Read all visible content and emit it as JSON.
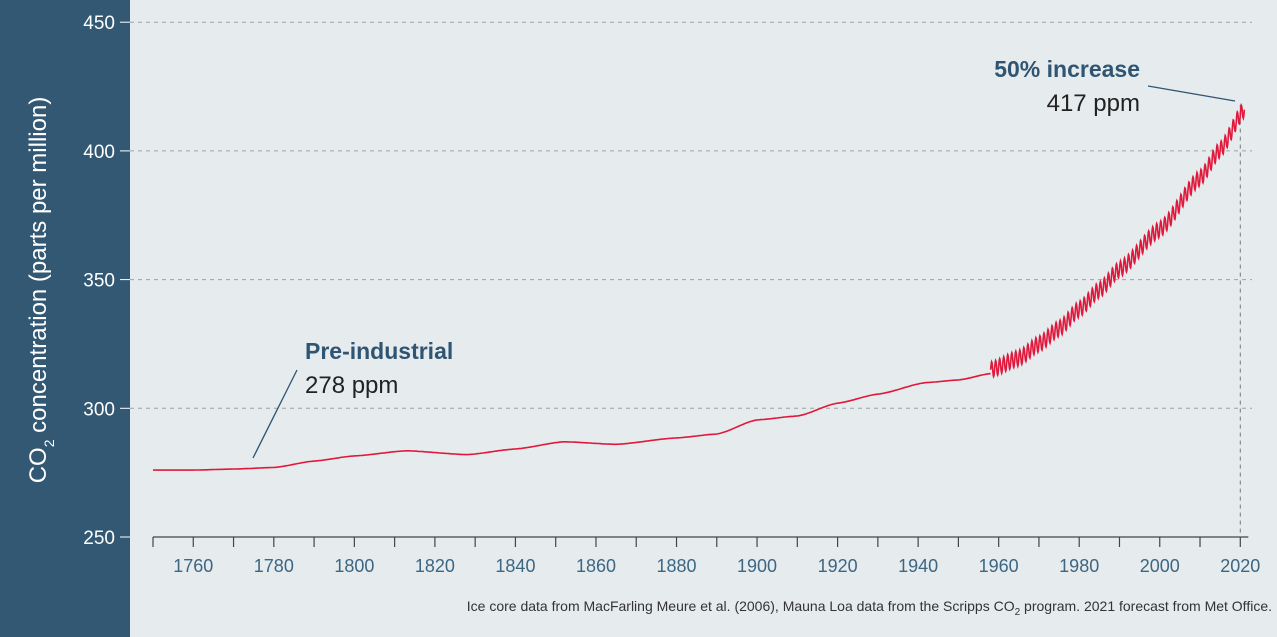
{
  "chart_data": {
    "type": "line",
    "ylabel": {
      "main": "CO",
      "sub": "2",
      "rest": " concentration (parts per million)"
    },
    "ylim": [
      250,
      450
    ],
    "yticks": [
      250,
      300,
      350,
      400,
      450
    ],
    "xlim": [
      1750,
      2022
    ],
    "xticks": [
      1760,
      1780,
      1800,
      1820,
      1840,
      1860,
      1880,
      1900,
      1920,
      1940,
      1960,
      1980,
      2000,
      2020
    ],
    "minor_tick_step": 10,
    "grid": "horizontal dashed",
    "series": [
      {
        "name": "Ice core",
        "x": [
          1750,
          1760,
          1770,
          1780,
          1790,
          1800,
          1813,
          1828,
          1840,
          1852,
          1865,
          1880,
          1890,
          1900,
          1910,
          1920,
          1930,
          1942,
          1950,
          1958
        ],
        "y": [
          276,
          276,
          276.4,
          277,
          279.5,
          281.5,
          283.5,
          282,
          284.2,
          287,
          286,
          288.5,
          290,
          295.5,
          297,
          302,
          305.5,
          310,
          311,
          313.5
        ]
      },
      {
        "name": "Mauna Loa",
        "seasonal_amplitude": 3,
        "x": [
          1958,
          1965,
          1970,
          1975,
          1980,
          1985,
          1990,
          2000,
          2010,
          2015,
          2021
        ],
        "y": [
          315,
          319.5,
          325,
          331,
          338.5,
          346,
          354,
          369.5,
          389.5,
          400.5,
          416
        ]
      }
    ],
    "annotations": [
      {
        "title": "Pre-industrial",
        "value": "278 ppm",
        "x": 1775,
        "y": 278
      },
      {
        "title": "50% increase",
        "value": "417 ppm",
        "x": 2020,
        "y": 418
      }
    ],
    "footnote": {
      "a": "Ice core data from MacFarling Meure et al. (2006), Mauna Loa data from the Scripps CO",
      "sub": "2",
      "b": " program. 2021 forecast from Met Office."
    },
    "colors": {
      "line": "#e0183c",
      "sidebar": "#325874",
      "background": "#e6ebee",
      "annotation": "#2f5573"
    }
  }
}
